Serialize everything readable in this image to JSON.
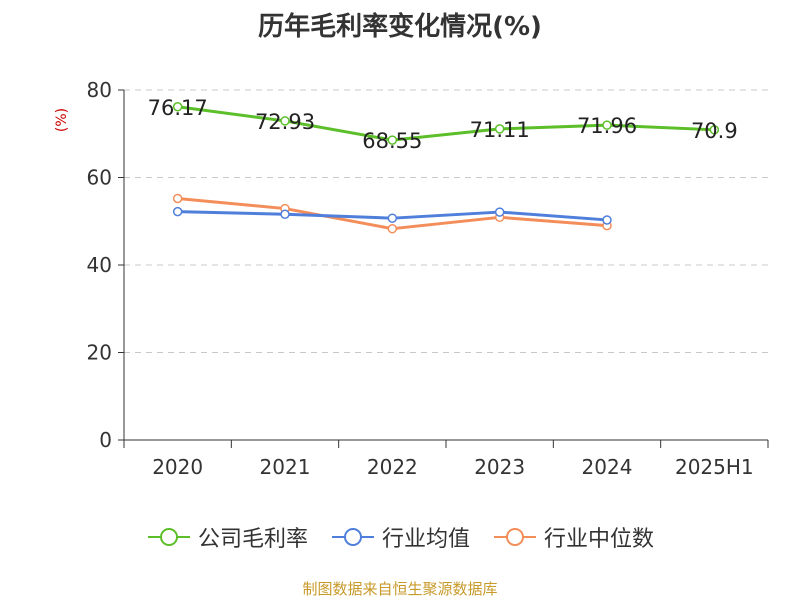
{
  "title": "历年毛利率变化情况(%)",
  "source": "制图数据来自恒生聚源数据库",
  "chart_data": {
    "type": "line",
    "title": "历年毛利率变化情况(%)",
    "ylabel": "(%)",
    "xlabel": "",
    "categories": [
      "2020",
      "2021",
      "2022",
      "2023",
      "2024",
      "2025H1"
    ],
    "ylim": [
      0,
      80
    ],
    "yticks": [
      0,
      20,
      40,
      60,
      80
    ],
    "grid": true,
    "legend_position": "bottom",
    "series": [
      {
        "name": "公司毛利率",
        "color": "#5cbf2a",
        "values": [
          76.17,
          72.93,
          68.55,
          71.11,
          71.96,
          70.9
        ],
        "labels": [
          "76.17",
          "72.93",
          "68.55",
          "71.11",
          "71.96",
          "70.9"
        ]
      },
      {
        "name": "行业均值",
        "color": "#4f7fdb",
        "values": [
          52.2,
          51.6,
          50.7,
          52.1,
          50.3,
          null
        ]
      },
      {
        "name": "行业中位数",
        "color": "#f38e5a",
        "values": [
          55.2,
          52.9,
          48.3,
          50.9,
          49.0,
          null
        ]
      }
    ]
  }
}
